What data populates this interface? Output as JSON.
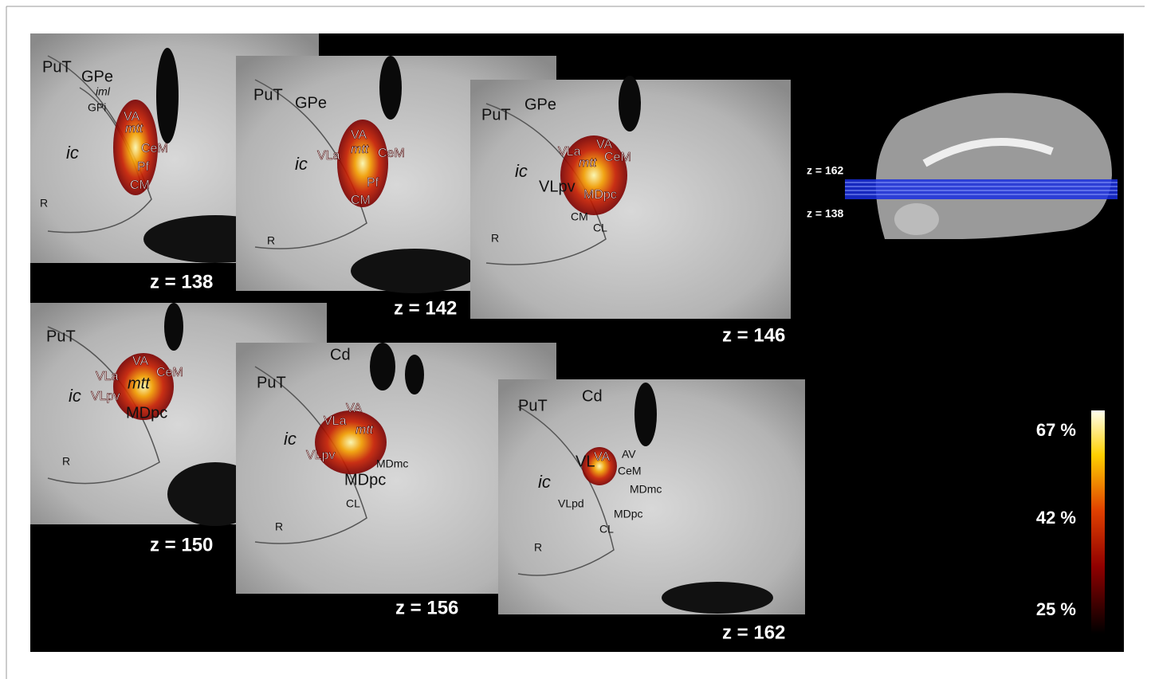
{
  "panels": [
    {
      "z_label": "z = 138",
      "labels": [
        "PuT",
        "GPe",
        "iml",
        "GPi",
        "VA",
        "mtt",
        "CeM",
        "Pf",
        "CM",
        "ic",
        "R"
      ]
    },
    {
      "z_label": "z = 142",
      "labels": [
        "PuT",
        "GPe",
        "VA",
        "mtt",
        "CeM",
        "VLa",
        "ic",
        "Pf",
        "CM",
        "R"
      ]
    },
    {
      "z_label": "z = 146",
      "labels": [
        "PuT",
        "GPe",
        "VLa",
        "VA",
        "mtt",
        "CeM",
        "ic",
        "VLpv",
        "MDpc",
        "CM",
        "CL",
        "R"
      ]
    },
    {
      "z_label": "z = 150",
      "labels": [
        "PuT",
        "VLa",
        "VA",
        "CeM",
        "mtt",
        "ic",
        "VLpv",
        "MDpc",
        "R"
      ]
    },
    {
      "z_label": "z = 156",
      "labels": [
        "Cd",
        "PuT",
        "VA",
        "VLa",
        "mtt",
        "ic",
        "VLpv",
        "MDmc",
        "MDpc",
        "CL",
        "R"
      ]
    },
    {
      "z_label": "z = 162",
      "labels": [
        "PuT",
        "Cd",
        "VL",
        "VA",
        "AV",
        "CeM",
        "MDmc",
        "ic",
        "VLpd",
        "MDpc",
        "CL",
        "R"
      ]
    }
  ],
  "inset": {
    "labels": [
      "z = 162",
      "z = 138"
    ]
  },
  "colorbar": {
    "ticks": [
      "67 %",
      "42 %",
      "25 %"
    ]
  }
}
